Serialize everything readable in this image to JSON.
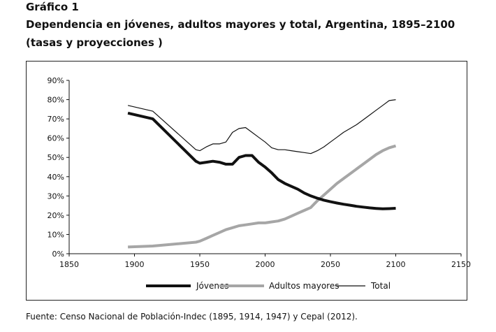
{
  "header": {
    "label": "Gráfico 1",
    "title": "Dependencia en jóvenes, adultos mayores y total, Argentina, 1895–2100",
    "subtitle": "(tasas y proyecciones )"
  },
  "source": "Fuente: Censo Nacional de Población-Indec (1895, 1914, 1947) y Cepal (2012).",
  "chart_data": {
    "type": "line",
    "title": "Dependencia en jóvenes, adultos mayores y total, Argentina, 1895–2100",
    "xlim": [
      1850,
      2150
    ],
    "ylim": [
      0,
      90
    ],
    "x_ticks": [
      "1850",
      "1900",
      "1950",
      "2000",
      "2050",
      "2100",
      "2150"
    ],
    "y_ticks": [
      "0%",
      "10%",
      "20%",
      "30%",
      "40%",
      "50%",
      "60%",
      "70%",
      "80%",
      "90%"
    ],
    "grid": false,
    "legend_position": "bottom",
    "series": [
      {
        "name": "Jóvenes",
        "color": "#111111",
        "style": "thick",
        "x": [
          1895,
          1914,
          1947,
          1950,
          1955,
          1960,
          1965,
          1970,
          1975,
          1980,
          1985,
          1990,
          1995,
          2000,
          2005,
          2010,
          2015,
          2020,
          2025,
          2030,
          2035,
          2040,
          2045,
          2050,
          2055,
          2060,
          2065,
          2070,
          2075,
          2080,
          2085,
          2090,
          2095,
          2100
        ],
        "values": [
          73,
          70,
          48,
          47,
          47.5,
          48,
          47.5,
          46.5,
          46.5,
          50,
          51,
          51,
          47.5,
          45,
          42,
          38.5,
          36.5,
          35,
          33.5,
          31.5,
          30,
          28.8,
          27.8,
          27,
          26.3,
          25.7,
          25.2,
          24.6,
          24.2,
          23.8,
          23.5,
          23.3,
          23.4,
          23.6
        ]
      },
      {
        "name": "Adultos mayores",
        "color": "#a6a6a6",
        "style": "thick",
        "x": [
          1895,
          1914,
          1947,
          1950,
          1955,
          1960,
          1965,
          1970,
          1975,
          1980,
          1985,
          1990,
          1995,
          2000,
          2005,
          2010,
          2015,
          2020,
          2025,
          2030,
          2035,
          2040,
          2045,
          2050,
          2055,
          2060,
          2065,
          2070,
          2075,
          2080,
          2085,
          2090,
          2095,
          2100
        ],
        "values": [
          3.5,
          4,
          6,
          6.5,
          8,
          9.5,
          11,
          12.5,
          13.5,
          14.5,
          15,
          15.5,
          16,
          16,
          16.5,
          17,
          18,
          19.5,
          21,
          22.5,
          24,
          27.5,
          30.5,
          33.5,
          36.5,
          39,
          41.5,
          44,
          46.5,
          49,
          51.5,
          53.5,
          55,
          56
        ]
      },
      {
        "name": "Total",
        "color": "#111111",
        "style": "thin",
        "x": [
          1895,
          1914,
          1947,
          1950,
          1955,
          1960,
          1965,
          1970,
          1975,
          1980,
          1985,
          1990,
          1995,
          2000,
          2005,
          2010,
          2015,
          2020,
          2025,
          2030,
          2035,
          2040,
          2045,
          2050,
          2055,
          2060,
          2065,
          2070,
          2075,
          2080,
          2085,
          2090,
          2095,
          2100
        ],
        "values": [
          77,
          74,
          54,
          53.5,
          55.5,
          57,
          57,
          58,
          63,
          65,
          65.5,
          63,
          60.5,
          58,
          55,
          54,
          54,
          53.5,
          53,
          52.5,
          52,
          53.5,
          55.5,
          58,
          60.5,
          63,
          65,
          67,
          69.5,
          72,
          74.5,
          77,
          79.5,
          80
        ]
      }
    ]
  }
}
